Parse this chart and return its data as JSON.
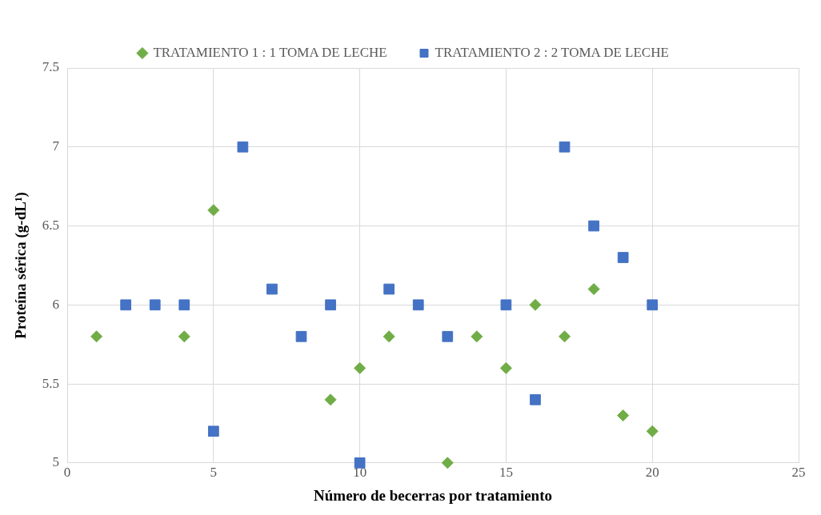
{
  "chart_data": {
    "type": "scatter",
    "xlabel": "Número de becerras por tratamiento",
    "ylabel": "Proteína sérica (g-dL¹)",
    "xlim": [
      0,
      25
    ],
    "xticks": [
      0,
      5,
      10,
      15,
      20,
      25
    ],
    "ylim": [
      5,
      7.5
    ],
    "yticks": [
      5,
      5.5,
      6,
      6.5,
      7,
      7.5
    ],
    "grid": true,
    "legend": "top",
    "series": [
      {
        "name": "TRATAMIENTO 1 : 1 TOMA DE LECHE",
        "color": "#70ad47",
        "marker": "diamond",
        "x": [
          1,
          4,
          5,
          9,
          10,
          11,
          13,
          14,
          15,
          16,
          17,
          18,
          19,
          20
        ],
        "values": [
          5.8,
          5.8,
          6.6,
          5.4,
          5.6,
          5.8,
          5.0,
          5.8,
          5.6,
          6.0,
          5.8,
          6.1,
          5.3,
          5.2
        ]
      },
      {
        "name": "TRATAMIENTO 2 : 2 TOMA DE LECHE",
        "color": "#4472c4",
        "marker": "square",
        "x": [
          2,
          3,
          4,
          5,
          6,
          7,
          8,
          9,
          10,
          11,
          12,
          13,
          15,
          16,
          17,
          18,
          19,
          20
        ],
        "values": [
          6,
          6,
          6,
          5.2,
          7,
          6.1,
          5.8,
          6,
          5.0,
          6.1,
          6,
          5.8,
          6,
          5.4,
          7,
          6.5,
          6.3,
          6
        ]
      }
    ]
  }
}
